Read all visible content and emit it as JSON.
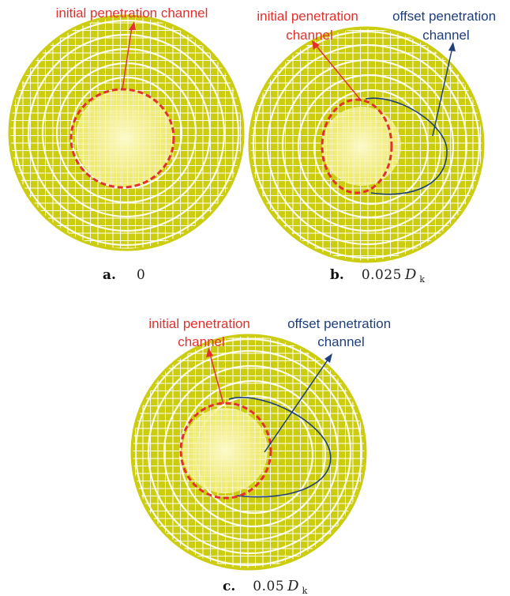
{
  "colors": {
    "mesh_fill": "#cccc10",
    "mesh_line": "#ffffff",
    "core_highlight": "#fbf8b8",
    "initial_channel": "#e2312d",
    "offset_channel": "#1e3f7a",
    "initial_label": "#e2312d",
    "offset_label": "#1e3f7a"
  },
  "panels": [
    {
      "id": "a",
      "letter": "a.",
      "value": "0",
      "variable": "",
      "subscript": "",
      "labels": {
        "initial": [
          "initial penetration channel"
        ],
        "offset": []
      }
    },
    {
      "id": "b",
      "letter": "b.",
      "value": "0.025",
      "variable": "D",
      "subscript": "k",
      "labels": {
        "initial": [
          "initial penetration",
          "channel"
        ],
        "offset": [
          "offset penetration",
          "channel"
        ]
      }
    },
    {
      "id": "c",
      "letter": "c.",
      "value": "0.05",
      "variable": "D",
      "subscript": "k",
      "labels": {
        "initial": [
          "initial penetration",
          "channel"
        ],
        "offset": [
          "offset penetration",
          "channel"
        ]
      }
    }
  ]
}
